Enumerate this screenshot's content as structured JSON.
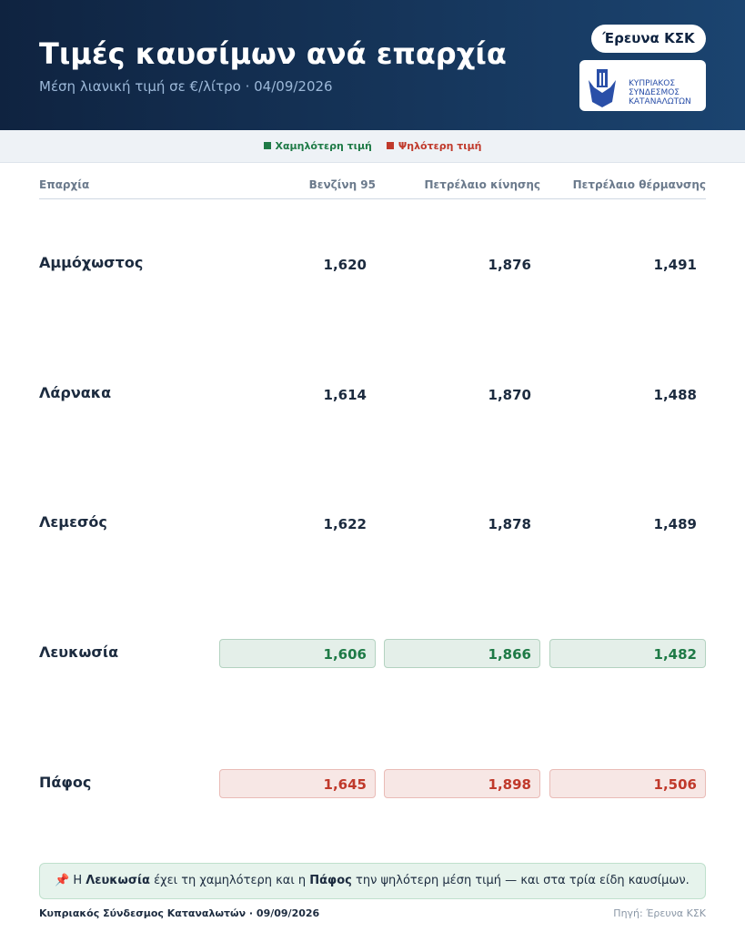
{
  "header": {
    "title": "Τιμές καυσίμων ανά επαρχία",
    "subtitle": "Μέση λιανική τιμή σε €/λίτρο · 04/09/2026",
    "badge": "Έρευνα ΚΣΚ",
    "logo_lines": [
      "ΚΥΠΡΙΑΚΟΣ",
      "ΣΥΝΔΕΣΜΟΣ",
      "ΚΑΤΑΝΑΛΩΤΩΝ"
    ]
  },
  "legend": [
    {
      "label": "Χαμηλότερη τιμή",
      "color": "#1e7a46"
    },
    {
      "label": "Ψηλότερη τιμή",
      "color": "#c0392b"
    }
  ],
  "table": {
    "columns": [
      "Επαρχία",
      "Βενζίνη 95",
      "Πετρέλαιο κίνησης",
      "Πετρέλαιο θέρμανσης"
    ],
    "rows": [
      {
        "name": "Αμμόχωστος",
        "values": [
          "1,620",
          "1,876",
          "1,491"
        ]
      },
      {
        "name": "Λάρνακα",
        "values": [
          "1,614",
          "1,870",
          "1,488"
        ]
      },
      {
        "name": "Λεμεσός",
        "values": [
          "1,622",
          "1,878",
          "1,489"
        ]
      },
      {
        "name": "Λευκωσία",
        "values": [
          "1,606",
          "1,866",
          "1,482"
        ],
        "highlight": 0
      },
      {
        "name": "Πάφος",
        "values": [
          "1,645",
          "1,898",
          "1,506"
        ],
        "highlight": 1
      }
    ]
  },
  "note": {
    "parts": [
      {
        "text": "📌 Η "
      },
      {
        "text": "Λευκωσία",
        "bold": true
      },
      {
        "text": " έχει τη χαμηλότερη και η "
      },
      {
        "text": "Πάφος",
        "bold": true
      },
      {
        "text": " την ψηλότερη μέση τιμή — και στα τρία είδη καυσίμων."
      }
    ]
  },
  "footer": {
    "left": "Κυπριακός Σύνδεσμος Καταναλωτών · 09/09/2026",
    "right": "Πηγή: Έρευνα ΚΣΚ"
  }
}
